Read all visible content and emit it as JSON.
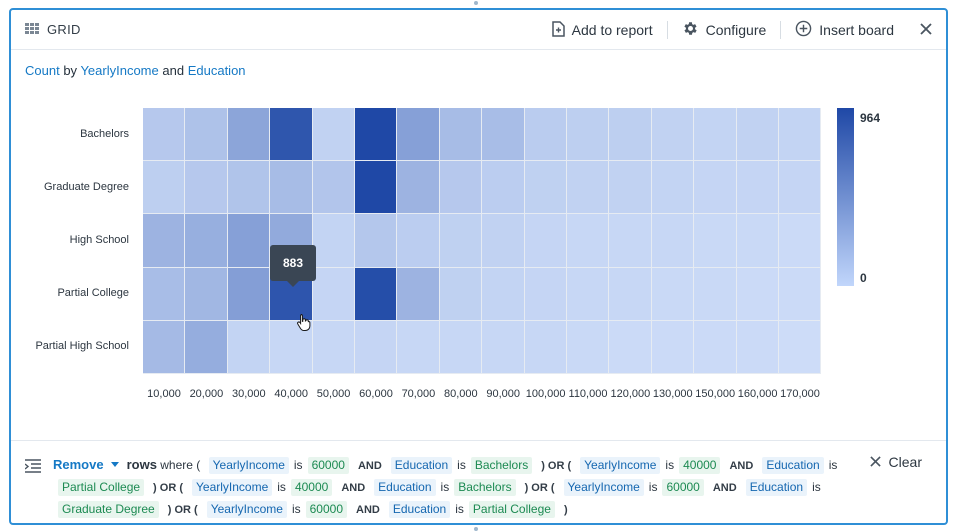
{
  "header": {
    "title": "GRID",
    "add_to_report": "Add to report",
    "configure": "Configure",
    "insert_board": "Insert board"
  },
  "subtitle": {
    "metric": "Count",
    "by": "by",
    "field1": "YearlyIncome",
    "and": "and",
    "field2": "Education"
  },
  "chart_data": {
    "type": "heatmap",
    "rows": [
      "Bachelors",
      "Graduate Degree",
      "High School",
      "Partial College",
      "Partial High School"
    ],
    "columns": [
      "10,000",
      "20,000",
      "30,000",
      "40,000",
      "50,000",
      "60,000",
      "70,000",
      "80,000",
      "90,000",
      "100,000",
      "110,000",
      "120,000",
      "130,000",
      "150,000",
      "160,000",
      "170,000"
    ],
    "values": [
      [
        170,
        210,
        390,
        880,
        110,
        964,
        420,
        250,
        240,
        150,
        130,
        130,
        110,
        100,
        110,
        100
      ],
      [
        130,
        170,
        200,
        250,
        190,
        964,
        300,
        170,
        140,
        120,
        110,
        110,
        100,
        90,
        90,
        90
      ],
      [
        300,
        330,
        420,
        360,
        100,
        180,
        140,
        120,
        110,
        90,
        80,
        80,
        80,
        70,
        70,
        60
      ],
      [
        240,
        280,
        430,
        883,
        90,
        930,
        300,
        120,
        100,
        90,
        80,
        80,
        70,
        70,
        60,
        60
      ],
      [
        260,
        340,
        100,
        80,
        80,
        90,
        80,
        80,
        80,
        80,
        70,
        60,
        60,
        60,
        60,
        50
      ]
    ],
    "color_min": "#d6e4fc",
    "color_max": "#1f48a6",
    "legend_max": "964",
    "legend_min": "0",
    "tooltip": "883"
  },
  "filter": {
    "action": "Remove",
    "rows": "rows",
    "where": "where (",
    "clauses": [
      {
        "prefix": "",
        "f1": "YearlyIncome",
        "is": "is",
        "v1": "60000",
        "and": "AND",
        "f2": "Education",
        "v2": "Bachelors",
        "suffix": ") OR ("
      },
      {
        "prefix": "",
        "f1": "YearlyIncome",
        "is": "is",
        "v1": "40000",
        "and": "AND",
        "f2": "Education",
        "v2": "Partial College",
        "suffix": ") OR ("
      },
      {
        "prefix": "",
        "f1": "YearlyIncome",
        "is": "is",
        "v1": "40000",
        "and": "AND",
        "f2": "Education",
        "v2": "Bachelors",
        "suffix": ") OR ("
      },
      {
        "prefix": "",
        "f1": "YearlyIncome",
        "is": "is",
        "v1": "60000",
        "and": "AND",
        "f2": "Education",
        "v2": "Graduate Degree",
        "suffix": ") OR ("
      },
      {
        "prefix": "",
        "f1": "YearlyIncome",
        "is": "is",
        "v1": "60000",
        "and": "AND",
        "f2": "Education",
        "v2": "Partial College",
        "suffix": ")"
      }
    ],
    "clear": "Clear"
  }
}
